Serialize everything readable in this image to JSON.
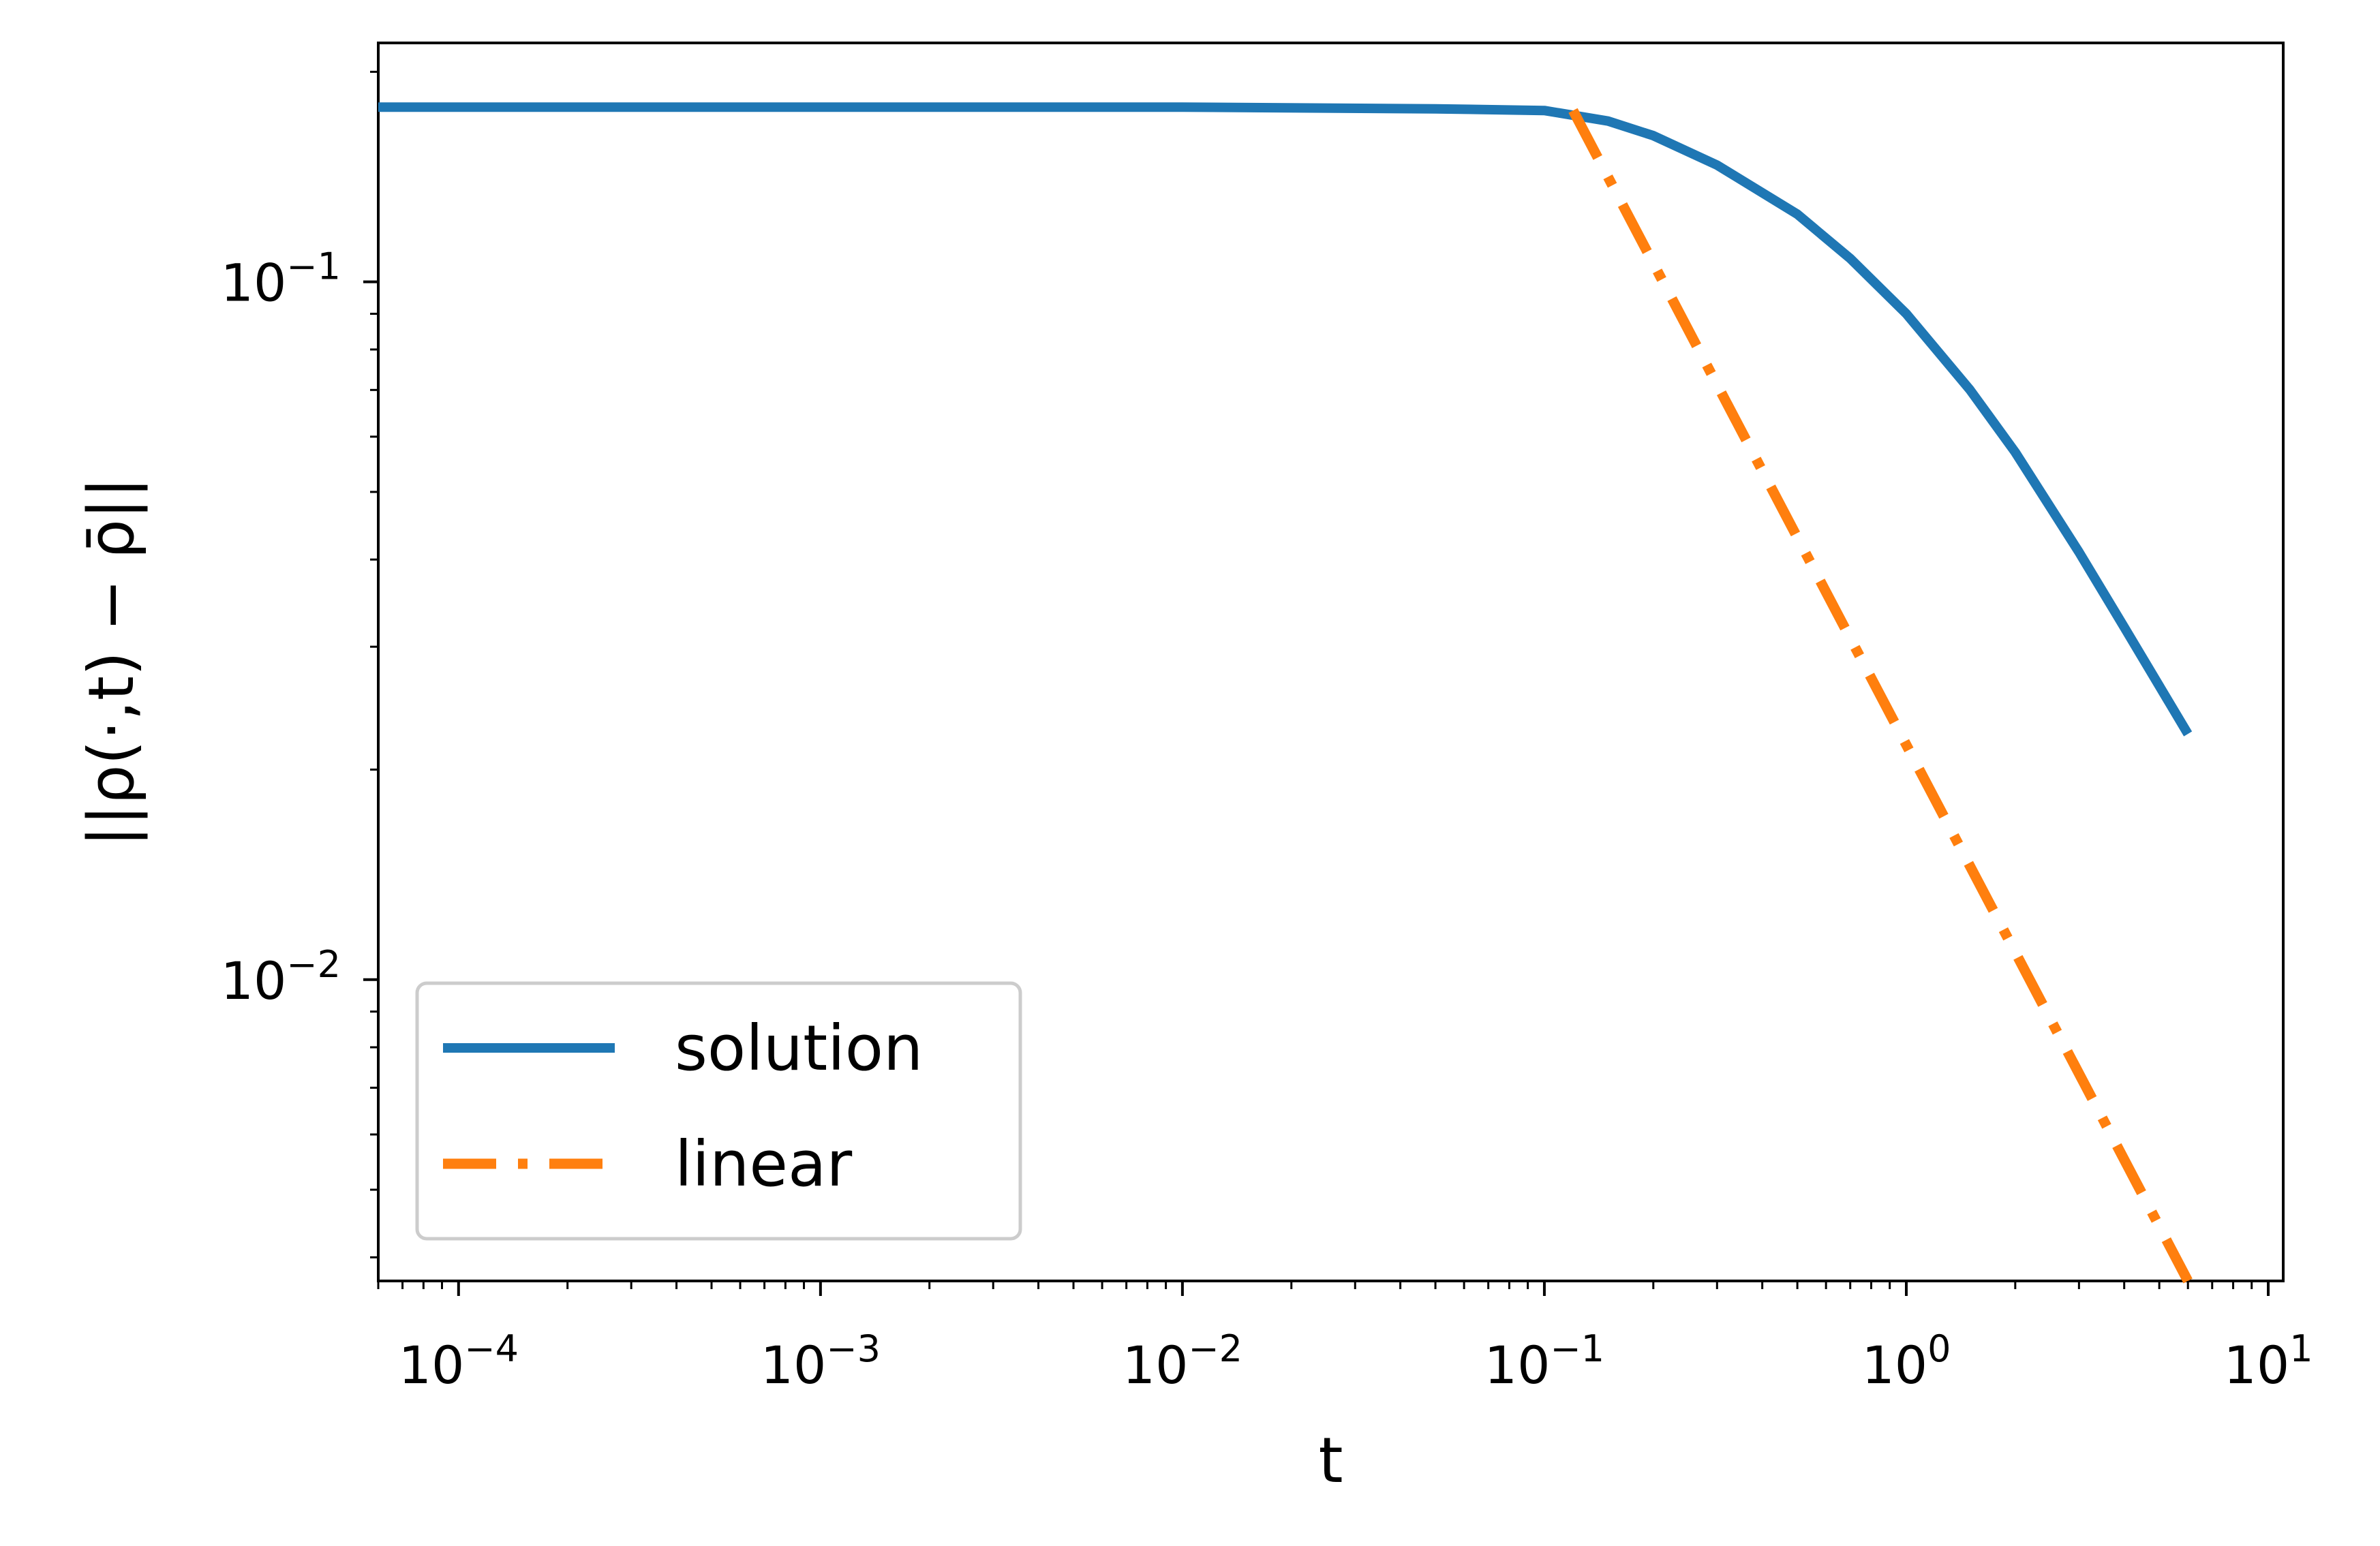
{
  "chart_data": {
    "type": "line",
    "title": "",
    "xlabel": "t",
    "ylabel": "||ρ(·,t) − ρ̄||",
    "xscale": "log",
    "yscale": "log",
    "xlim": [
      6e-05,
      11
    ],
    "ylim": [
      0.0037,
      0.22
    ],
    "grid": false,
    "legend_position": "lower-left",
    "x_ticks": [
      {
        "base": "10",
        "exp": "−4"
      },
      {
        "base": "10",
        "exp": "−3"
      },
      {
        "base": "10",
        "exp": "−2"
      },
      {
        "base": "10",
        "exp": "−1"
      },
      {
        "base": "10",
        "exp": "0"
      },
      {
        "base": "10",
        "exp": "1"
      }
    ],
    "y_ticks": [
      {
        "base": "10",
        "exp": "−1"
      },
      {
        "base": "10",
        "exp": "−2"
      }
    ],
    "series": [
      {
        "name": "solution",
        "color": "#1f77b4",
        "style": "solid",
        "x": [
          6e-05,
          0.0001,
          0.001,
          0.01,
          0.05,
          0.1,
          0.15,
          0.2,
          0.3,
          0.5,
          0.7,
          1.0,
          1.5,
          2.0,
          3.0,
          4.0,
          6.0
        ],
        "y": [
          0.178,
          0.178,
          0.178,
          0.178,
          0.177,
          0.176,
          0.17,
          0.162,
          0.147,
          0.125,
          0.108,
          0.09,
          0.07,
          0.057,
          0.041,
          0.032,
          0.0225
        ]
      },
      {
        "name": "linear",
        "color": "#ff7f0e",
        "style": "dashdot",
        "x": [
          0.12,
          6.0
        ],
        "y": [
          0.176,
          0.0037
        ]
      }
    ]
  }
}
